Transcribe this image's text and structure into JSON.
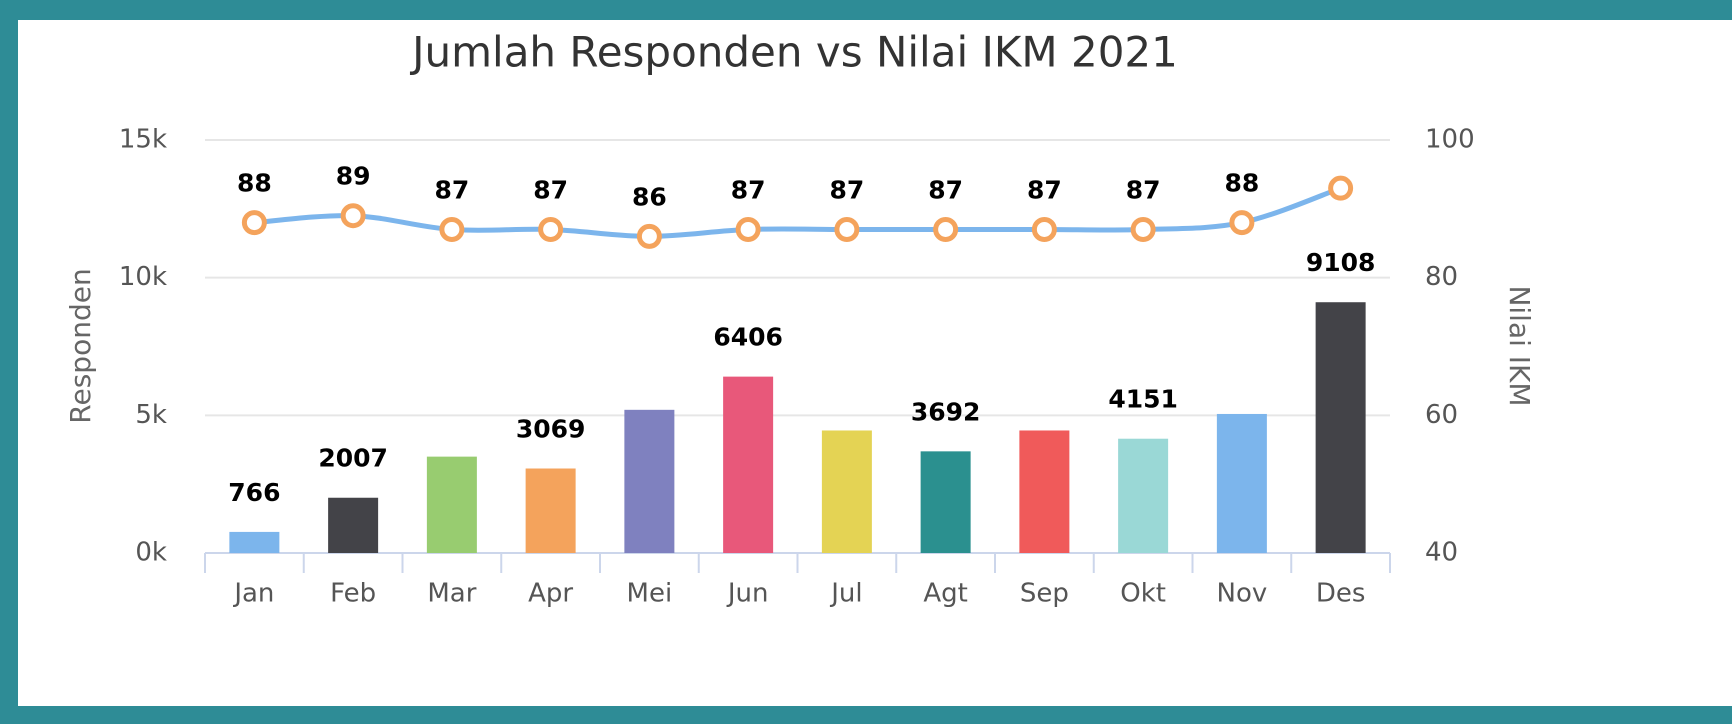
{
  "chart_data": {
    "type": "bar",
    "title": "Jumlah Responden vs Nilai IKM 2021",
    "ylabel": "Responden",
    "y2label": "Nilai IKM",
    "categories": [
      "Jan",
      "Feb",
      "Mar",
      "Apr",
      "Mei",
      "Jun",
      "Jul",
      "Agt",
      "Sep",
      "Okt",
      "Nov",
      "Des"
    ],
    "series": [
      {
        "type": "bar",
        "colors": [
          "#7cb5ec",
          "#434348",
          "#98cc70",
          "#f4a35c",
          "#7f81bf",
          "#e8587a",
          "#e4d354",
          "#2b908f",
          "#f05a5a",
          "#9ad8d6",
          "#7cb5ec",
          "#434348"
        ],
        "values": [
          766,
          2007,
          3500,
          3069,
          5200,
          6406,
          4450,
          3692,
          4450,
          4151,
          5050,
          9108
        ],
        "value_labels": [
          "766",
          "2007",
          null,
          "3069",
          null,
          "6406",
          null,
          "3692",
          null,
          "4151",
          null,
          "9108"
        ]
      },
      {
        "type": "line",
        "axis": "y2",
        "color": "#7cb5ec",
        "marker_color": "#f4a35c",
        "values": [
          88,
          89,
          87,
          87,
          86,
          87,
          87,
          87,
          87,
          87,
          88,
          93
        ],
        "value_labels": [
          "88",
          "89",
          "87",
          "87",
          "86",
          "87",
          "87",
          "87",
          "87",
          "87",
          "88",
          null
        ]
      }
    ],
    "ylim": [
      0,
      15000
    ],
    "yticks": [
      {
        "value": 0,
        "label": "0k"
      },
      {
        "value": 5000,
        "label": "5k"
      },
      {
        "value": 10000,
        "label": "10k"
      },
      {
        "value": 15000,
        "label": "15k"
      }
    ],
    "y2lim": [
      40,
      100
    ],
    "y2ticks": [
      40,
      60,
      80,
      100
    ],
    "grid": true
  }
}
